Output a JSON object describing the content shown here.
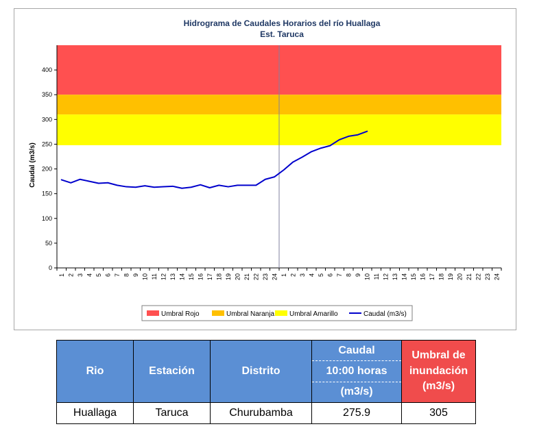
{
  "chart_data": {
    "type": "line",
    "title": "Hidrograma de Caudales Horarios del río Huallaga",
    "subtitle": "Est. Taruca",
    "ylabel": "Caudal  (m3/s)",
    "xlabel": "",
    "ylim": [
      0,
      450
    ],
    "yticks": [
      0,
      50,
      100,
      150,
      200,
      250,
      300,
      350,
      400
    ],
    "x_tick_labels": [
      "1",
      "2",
      "3",
      "4",
      "5",
      "6",
      "7",
      "8",
      "9",
      "10",
      "11",
      "12",
      "13",
      "14",
      "15",
      "16",
      "17",
      "18",
      "19",
      "20",
      "21",
      "22",
      "23",
      "24",
      "1",
      "2",
      "3",
      "4",
      "5",
      "6",
      "7",
      "8",
      "9",
      "10",
      "11",
      "12",
      "13",
      "14",
      "15",
      "16",
      "17",
      "18",
      "19",
      "20",
      "21",
      "22",
      "23",
      "24"
    ],
    "divider_after_index": 24,
    "bands": [
      {
        "name": "Umbral Rojo",
        "from": 350,
        "to": 450,
        "color": "#ff5050"
      },
      {
        "name": "Umbral Naranja",
        "from": 310,
        "to": 350,
        "color": "#ffc000"
      },
      {
        "name": "Umbral Amarillo",
        "from": 248,
        "to": 310,
        "color": "#ffff00"
      }
    ],
    "series": [
      {
        "name": "Caudal (m3/s)",
        "color": "#0000cc",
        "values": [
          178,
          172,
          179,
          175,
          171,
          172,
          167,
          164,
          163,
          166,
          163,
          164,
          165,
          161,
          163,
          168,
          162,
          167,
          164,
          167,
          167,
          167,
          179,
          184,
          198,
          214,
          224,
          235,
          242,
          247,
          259,
          266,
          269,
          276
        ]
      }
    ],
    "legend": {
      "placement": "bottom",
      "items": [
        "Umbral Rojo",
        "Umbral Naranja",
        "Umbral Amarillo",
        "Caudal (m3/s)"
      ]
    }
  },
  "table": {
    "headers": {
      "rio": "Rio",
      "estacion": "Estación",
      "distrito": "Distrito",
      "caudal_line1": "Caudal",
      "caudal_line2": "10:00 horas",
      "caudal_line3": "(m3/s)",
      "umbral_line1": "Umbral de",
      "umbral_line2": "inundación",
      "umbral_line3": "(m3/s)"
    },
    "row": {
      "rio": "Huallaga",
      "estacion": "Taruca",
      "distrito": "Churubamba",
      "caudal": "275.9",
      "umbral": "305"
    }
  }
}
